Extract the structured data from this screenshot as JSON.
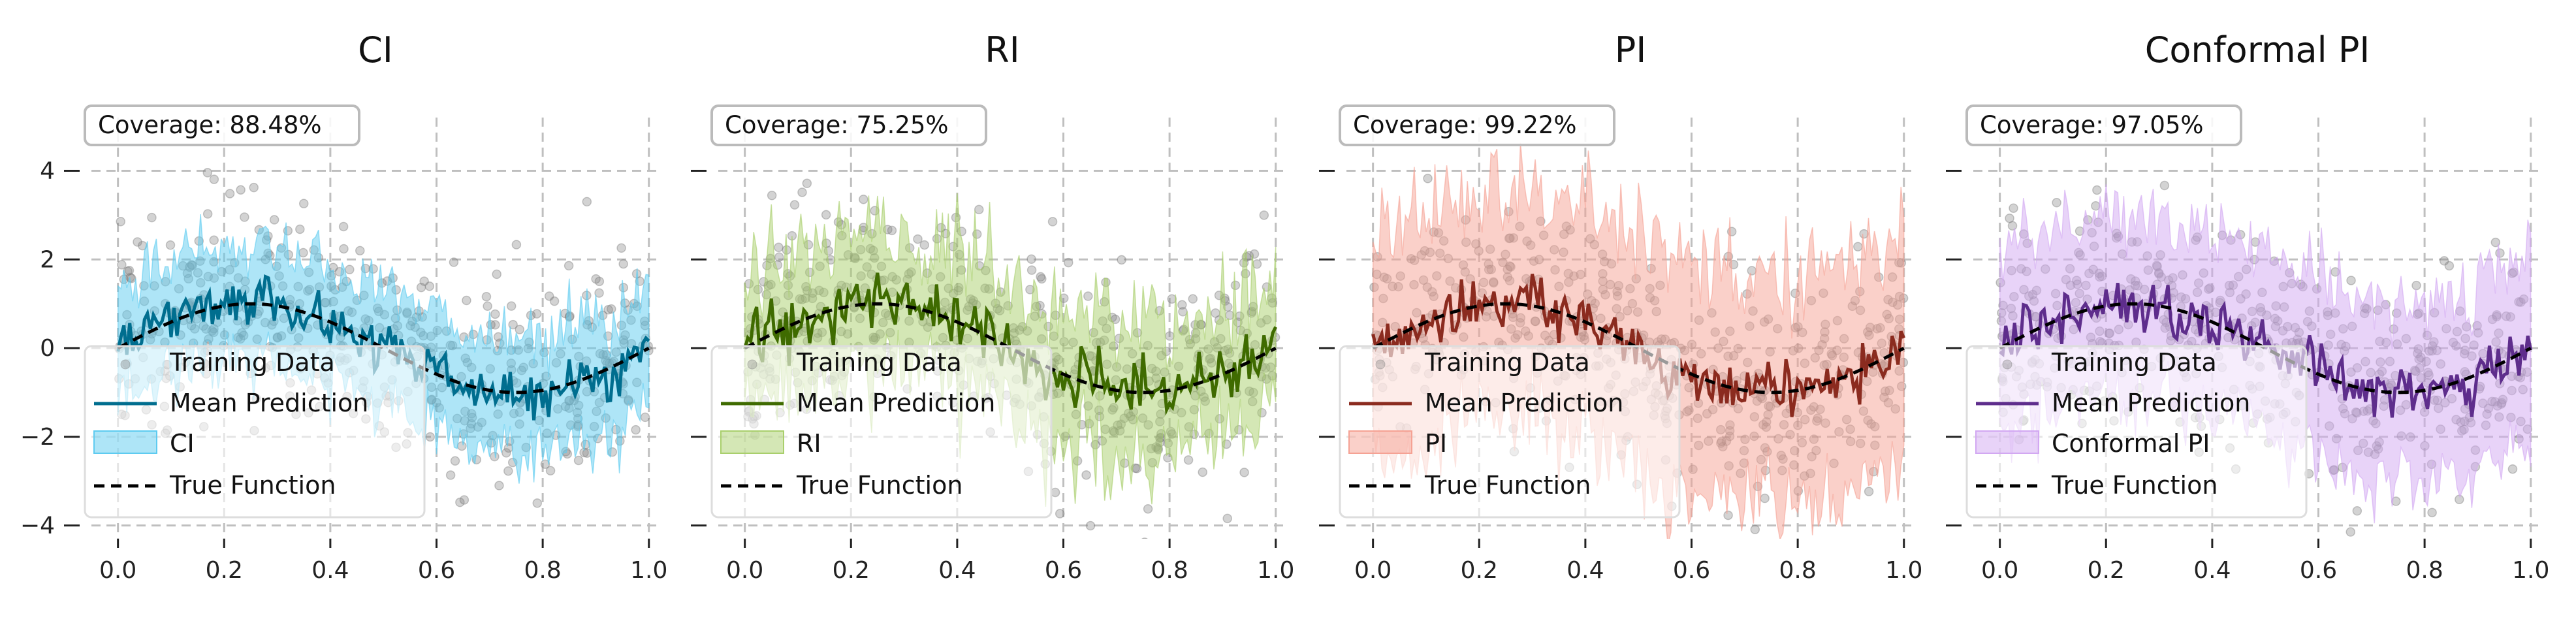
{
  "chart_data": [
    {
      "type": "line",
      "title": "CI",
      "coverage_text": "Coverage: 88.48%",
      "band_label": "CI",
      "colors": {
        "mean": "#006e8f",
        "band": "#5ecbf0"
      },
      "legend": {
        "training": "Training Data",
        "mean": "Mean Prediction",
        "band": "CI",
        "true_fn": "True Function"
      },
      "band_halfwidth": [
        1.0,
        1.6
      ],
      "noise_seed": 11,
      "xlim": [
        -0.05,
        1.02
      ],
      "ylim": [
        -4.3,
        5.2
      ],
      "xticks": [
        "0.0",
        "0.2",
        "0.4",
        "0.6",
        "0.8",
        "1.0"
      ],
      "yticks": [
        "4",
        "2",
        "0",
        "−2",
        "−4"
      ],
      "true_function": "sin(2πx)",
      "grid": true
    },
    {
      "type": "line",
      "title": "RI",
      "coverage_text": "Coverage: 75.25%",
      "band_label": "RI",
      "colors": {
        "mean": "#3f6b00",
        "band": "#a9cf6c"
      },
      "legend": {
        "training": "Training Data",
        "mean": "Mean Prediction",
        "band": "RI",
        "true_fn": "True Function"
      },
      "band_halfwidth": [
        0.8,
        2.2
      ],
      "noise_seed": 23,
      "xlim": [
        -0.05,
        1.02
      ],
      "ylim": [
        -4.3,
        5.2
      ],
      "xticks": [
        "0.0",
        "0.2",
        "0.4",
        "0.6",
        "0.8",
        "1.0"
      ],
      "yticks": [
        "",
        "",
        "",
        "",
        ""
      ],
      "true_function": "sin(2πx)",
      "grid": true
    },
    {
      "type": "line",
      "title": "PI",
      "coverage_text": "Coverage: 99.22%",
      "band_label": "PI",
      "colors": {
        "mean": "#8b2b1f",
        "band": "#f5a294"
      },
      "legend": {
        "training": "Training Data",
        "mean": "Mean Prediction",
        "band": "PI",
        "true_fn": "True Function"
      },
      "band_halfwidth": [
        2.2,
        3.0
      ],
      "noise_seed": 37,
      "xlim": [
        -0.05,
        1.02
      ],
      "ylim": [
        -4.3,
        5.2
      ],
      "xticks": [
        "0.0",
        "0.2",
        "0.4",
        "0.6",
        "0.8",
        "1.0"
      ],
      "yticks": [
        "",
        "",
        "",
        "",
        ""
      ],
      "true_function": "sin(2πx)",
      "grid": true
    },
    {
      "type": "line",
      "title": "Conformal PI",
      "coverage_text": "Coverage: 97.05%",
      "band_label": "Conformal PI",
      "colors": {
        "mean": "#5e2d8c",
        "band": "#d2a8f2"
      },
      "legend": {
        "training": "Training Data",
        "mean": "Mean Prediction",
        "band": "Conformal PI",
        "true_fn": "True Function"
      },
      "band_halfwidth": [
        1.9,
        2.2
      ],
      "noise_seed": 53,
      "xlim": [
        -0.05,
        1.02
      ],
      "ylim": [
        -4.3,
        5.2
      ],
      "xticks": [
        "0.0",
        "0.2",
        "0.4",
        "0.6",
        "0.8",
        "1.0"
      ],
      "yticks": [
        "",
        "",
        "",
        "",
        ""
      ],
      "true_function": "sin(2πx)",
      "grid": true
    }
  ],
  "style": {
    "training_color": "#808080",
    "true_fn_color": "#000000",
    "grid_color": "#bfbfbf"
  }
}
